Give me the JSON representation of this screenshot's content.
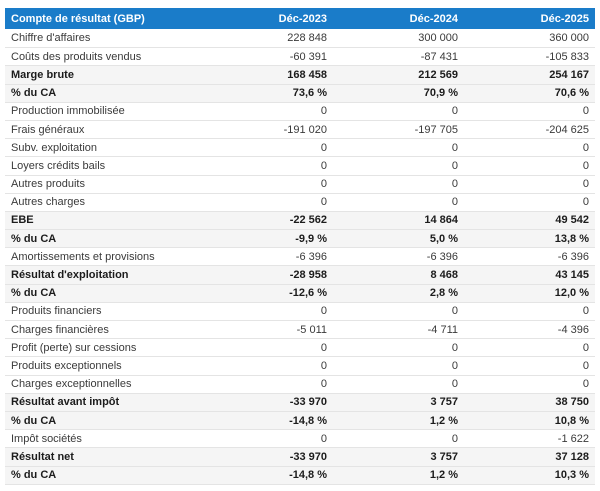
{
  "chart_data": {
    "type": "table",
    "title": "Compte de résultat (GBP)",
    "columns": [
      "Déc-2023",
      "Déc-2024",
      "Déc-2025"
    ],
    "rows": [
      {
        "label": "Chiffre d'affaires",
        "values": [
          "228 848",
          "300 000",
          "360 000"
        ],
        "bold": false
      },
      {
        "label": "Coûts des produits vendus",
        "values": [
          "-60 391",
          "-87 431",
          "-105 833"
        ],
        "bold": false
      },
      {
        "label": "Marge brute",
        "values": [
          "168 458",
          "212 569",
          "254 167"
        ],
        "bold": true
      },
      {
        "label": "% du CA",
        "values": [
          "73,6 %",
          "70,9 %",
          "70,6 %"
        ],
        "bold": true
      },
      {
        "label": "Production immobilisée",
        "values": [
          "0",
          "0",
          "0"
        ],
        "bold": false
      },
      {
        "label": "Frais généraux",
        "values": [
          "-191 020",
          "-197 705",
          "-204 625"
        ],
        "bold": false
      },
      {
        "label": "Subv. exploitation",
        "values": [
          "0",
          "0",
          "0"
        ],
        "bold": false
      },
      {
        "label": "Loyers crédits bails",
        "values": [
          "0",
          "0",
          "0"
        ],
        "bold": false
      },
      {
        "label": "Autres produits",
        "values": [
          "0",
          "0",
          "0"
        ],
        "bold": false
      },
      {
        "label": "Autres charges",
        "values": [
          "0",
          "0",
          "0"
        ],
        "bold": false
      },
      {
        "label": "EBE",
        "values": [
          "-22 562",
          "14 864",
          "49 542"
        ],
        "bold": true
      },
      {
        "label": "% du CA",
        "values": [
          "-9,9 %",
          "5,0 %",
          "13,8 %"
        ],
        "bold": true
      },
      {
        "label": "Amortissements et provisions",
        "values": [
          "-6 396",
          "-6 396",
          "-6 396"
        ],
        "bold": false
      },
      {
        "label": "Résultat d'exploitation",
        "values": [
          "-28 958",
          "8 468",
          "43 145"
        ],
        "bold": true
      },
      {
        "label": "% du CA",
        "values": [
          "-12,6 %",
          "2,8 %",
          "12,0 %"
        ],
        "bold": true
      },
      {
        "label": "Produits financiers",
        "values": [
          "0",
          "0",
          "0"
        ],
        "bold": false
      },
      {
        "label": "Charges financières",
        "values": [
          "-5 011",
          "-4 711",
          "-4 396"
        ],
        "bold": false
      },
      {
        "label": "Profit (perte) sur cessions",
        "values": [
          "0",
          "0",
          "0"
        ],
        "bold": false
      },
      {
        "label": "Produits exceptionnels",
        "values": [
          "0",
          "0",
          "0"
        ],
        "bold": false
      },
      {
        "label": "Charges exceptionnelles",
        "values": [
          "0",
          "0",
          "0"
        ],
        "bold": false
      },
      {
        "label": "Résultat avant impôt",
        "values": [
          "-33 970",
          "3 757",
          "38 750"
        ],
        "bold": true
      },
      {
        "label": "% du CA",
        "values": [
          "-14,8 %",
          "1,2 %",
          "10,8 %"
        ],
        "bold": true
      },
      {
        "label": "Impôt sociétés",
        "values": [
          "0",
          "0",
          "-1 622"
        ],
        "bold": false
      },
      {
        "label": "Résultat net",
        "values": [
          "-33 970",
          "3 757",
          "37 128"
        ],
        "bold": true
      },
      {
        "label": "% du CA",
        "values": [
          "-14,8 %",
          "1,2 %",
          "10,3 %"
        ],
        "bold": true
      }
    ]
  },
  "colors": {
    "header_bg": "#1a7cc9",
    "header_text": "#ffffff",
    "section_row_bg": "#f5f5f5",
    "row_divider": "#e4e4e4"
  }
}
